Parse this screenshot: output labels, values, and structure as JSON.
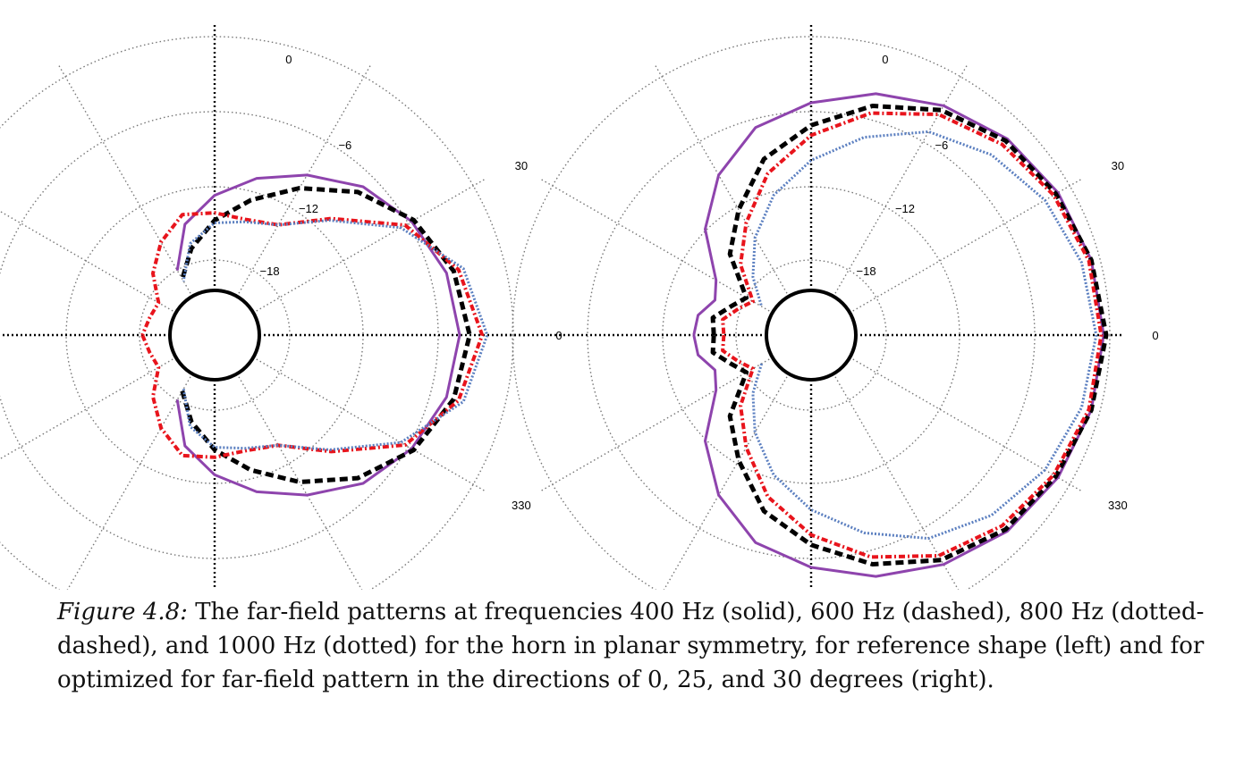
{
  "chart_data": [
    {
      "type": "polar",
      "panel": "left",
      "angle_labels": [
        "0",
        "30",
        "0",
        "330"
      ],
      "radial_labels": [
        "-6",
        "-12",
        "-18"
      ],
      "grid": true,
      "series": [
        {
          "frequency_hz": 400,
          "style": "solid",
          "color": "#8e44ad",
          "theta_deg": [
            0,
            15,
            30,
            45,
            60,
            75,
            90,
            105,
            120
          ],
          "level": [
            0.8,
            0.78,
            0.73,
            0.66,
            0.56,
            0.47,
            0.38,
            0.28,
            0.12
          ]
        },
        {
          "frequency_hz": 600,
          "style": "dashed",
          "color": "#000000",
          "theta_deg": [
            0,
            15,
            30,
            45,
            60,
            75,
            90,
            105,
            120
          ],
          "level": [
            0.84,
            0.81,
            0.74,
            0.63,
            0.5,
            0.38,
            0.28,
            0.18,
            0.08
          ]
        },
        {
          "frequency_hz": 800,
          "style": "dotted-dashed",
          "color": "#e8141c",
          "theta_deg": [
            0,
            15,
            30,
            45,
            60,
            75,
            90,
            105,
            120,
            135,
            150,
            165,
            180
          ],
          "level": [
            0.89,
            0.83,
            0.7,
            0.48,
            0.33,
            0.3,
            0.31,
            0.32,
            0.25,
            0.17,
            0.08,
            0.09,
            0.11
          ]
        },
        {
          "frequency_hz": 1000,
          "style": "dotted",
          "color": "#5b7fc0",
          "theta_deg": [
            0,
            15,
            30,
            45,
            60,
            75,
            90,
            105,
            120
          ],
          "level": [
            0.91,
            0.85,
            0.68,
            0.47,
            0.33,
            0.29,
            0.27,
            0.2,
            0.07
          ]
        }
      ]
    },
    {
      "type": "polar",
      "panel": "right",
      "angle_labels": [
        "0",
        "30",
        "0",
        "330"
      ],
      "radial_labels": [
        "-6",
        "-12",
        "-18"
      ],
      "grid": true,
      "series": [
        {
          "frequency_hz": 400,
          "style": "solid",
          "color": "#8e44ad",
          "theta_deg": [
            0,
            15,
            30,
            45,
            60,
            75,
            90,
            105,
            120,
            135,
            150,
            160,
            170,
            180
          ],
          "level": [
            0.99,
            0.98,
            0.96,
            0.93,
            0.88,
            0.82,
            0.75,
            0.68,
            0.56,
            0.42,
            0.26,
            0.23,
            0.28,
            0.29
          ]
        },
        {
          "frequency_hz": 600,
          "style": "dashed",
          "color": "#000000",
          "theta_deg": [
            0,
            15,
            30,
            45,
            60,
            75,
            90,
            105,
            120,
            135,
            150,
            160,
            170,
            180
          ],
          "level": [
            1.0,
            0.98,
            0.95,
            0.92,
            0.86,
            0.77,
            0.66,
            0.55,
            0.4,
            0.28,
            0.12,
            0.16,
            0.22,
            0.21
          ]
        },
        {
          "frequency_hz": 800,
          "style": "dotted-dashed",
          "color": "#e8141c",
          "theta_deg": [
            0,
            15,
            30,
            45,
            60,
            75,
            90,
            105,
            120,
            135,
            150,
            160,
            170,
            180
          ],
          "level": [
            0.98,
            0.97,
            0.94,
            0.9,
            0.84,
            0.74,
            0.62,
            0.49,
            0.34,
            0.22,
            0.09,
            0.13,
            0.18,
            0.17
          ]
        },
        {
          "frequency_hz": 1000,
          "style": "dotted",
          "color": "#5b7fc0",
          "theta_deg": [
            0,
            15,
            30,
            45,
            60,
            75,
            90,
            105,
            120,
            135,
            150
          ],
          "level": [
            0.96,
            0.94,
            0.9,
            0.84,
            0.76,
            0.64,
            0.52,
            0.4,
            0.27,
            0.15,
            0.05
          ]
        }
      ]
    }
  ],
  "caption": {
    "lead": "Figure 4.8:",
    "text": "The far-field patterns at frequencies 400 Hz (solid), 600 Hz (dashed), 800 Hz (dotted-dashed), and 1000 Hz (dotted) for the horn in planar symmetry, for reference shape (left) and for optimized for far-field pattern in the directions of 0, 25, and 30 degrees (right)."
  }
}
